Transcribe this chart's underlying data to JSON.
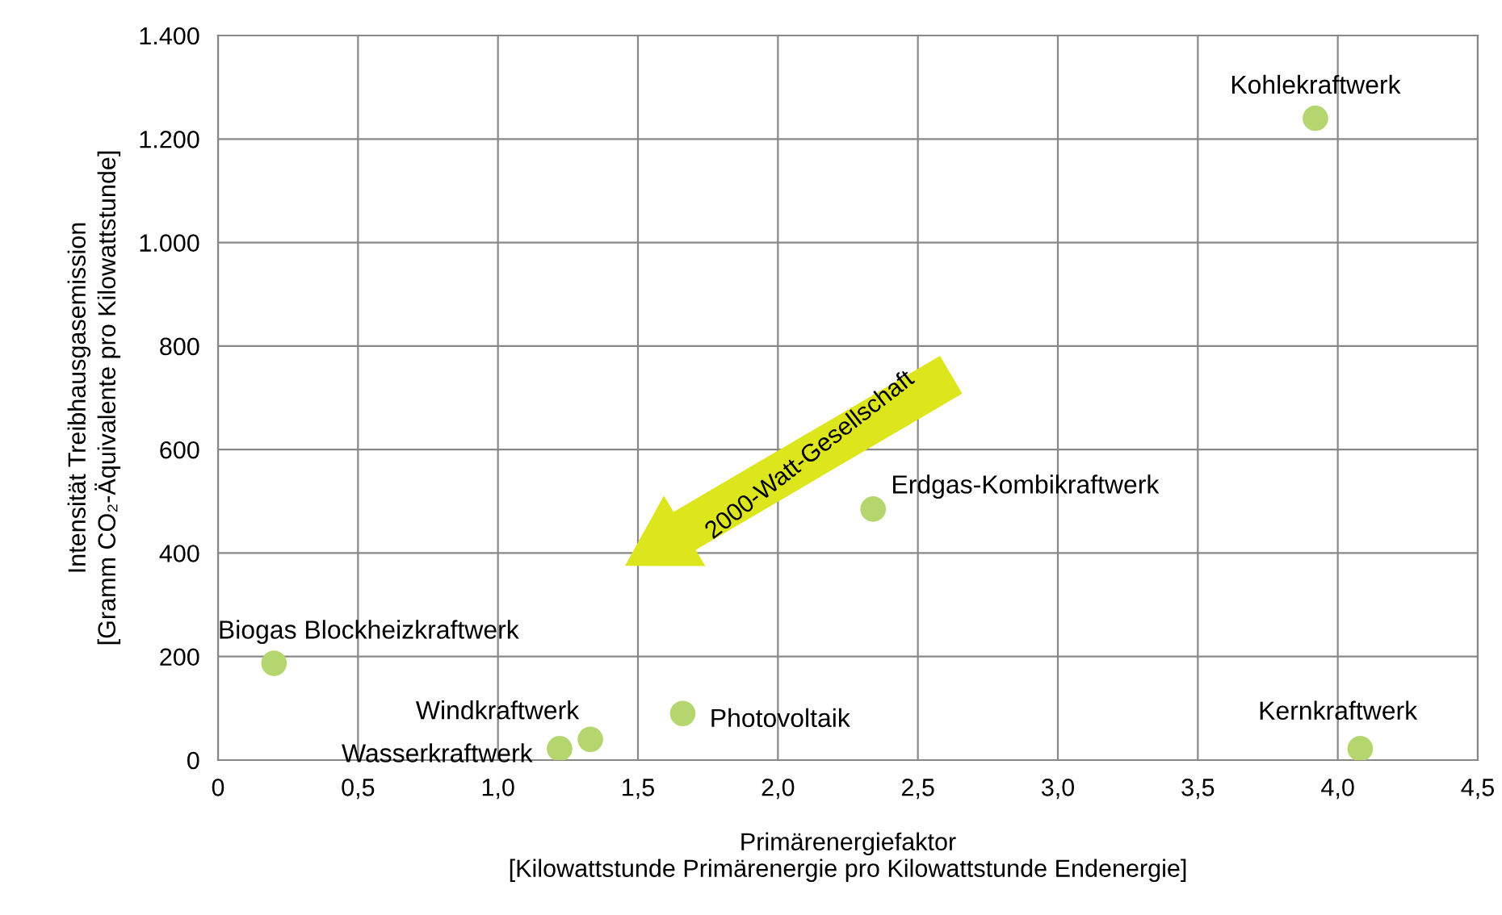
{
  "chart_data": {
    "type": "scatter",
    "xlabel": "Primärenergiefaktor\n[Kilowattstunde Primärenergie pro Kilowattstunde Endenergie]",
    "ylabel": "Intensität Treibhausgasemission\n[Gramm CO₂-Äquivalente pro Kilowattstunde]",
    "x": [
      3.92,
      2.34,
      0.2,
      1.33,
      1.22,
      1.66,
      4.08
    ],
    "values": [
      1240,
      485,
      187,
      40,
      22,
      90,
      22
    ],
    "color": "#b5d66e",
    "marker": "circle",
    "xlim": [
      0,
      4.5
    ],
    "xticks": [
      0,
      {
        "value": 0.5,
        "label": "0,5"
      },
      {
        "value": 1,
        "label": "1,0"
      },
      {
        "value": 1.5,
        "label": "1,5"
      },
      {
        "value": 2,
        "label": "2,0"
      },
      {
        "value": 2.5,
        "label": "2,5"
      },
      {
        "value": 3,
        "label": "3,0"
      },
      {
        "value": 3.5,
        "label": "3,5"
      },
      {
        "value": 4,
        "label": "4,0"
      },
      {
        "value": 4.5,
        "label": "4,5"
      }
    ],
    "ylim": [
      0,
      1400
    ],
    "yticks": [
      0,
      200,
      400,
      600,
      800,
      {
        "value": 1000,
        "label": "1.000"
      },
      {
        "value": 1200,
        "label": "1.200"
      },
      {
        "value": 1400,
        "label": "1.400"
      }
    ],
    "grid": true,
    "annotations": [
      {
        "text": "Kohlekraftwerk",
        "x": 3.92,
        "y": 1240
      },
      {
        "text": "Erdgas-Kombikraftwerk",
        "x": 2.34,
        "y": 485
      },
      {
        "text": "Biogas Blockheizkraftwerk",
        "x": 0.2,
        "y": 187
      },
      {
        "text": "Windkraftwerk",
        "x": 1.33,
        "y": 40
      },
      {
        "text": "Wasserkraftwerk",
        "x": 1.22,
        "y": 22
      },
      {
        "text": "Photovoltaik",
        "x": 1.66,
        "y": 90
      },
      {
        "text": "Kernkraftwerk",
        "x": 4.08,
        "y": 22
      },
      "2000-Watt-Gesellschaft"
    ]
  }
}
